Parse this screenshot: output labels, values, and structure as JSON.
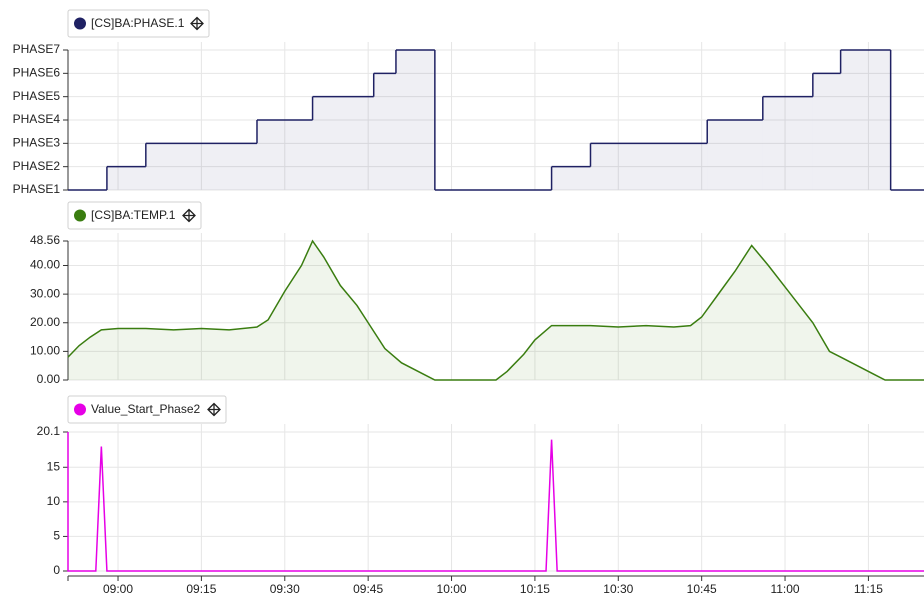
{
  "chart_data": [
    {
      "type": "step",
      "xlim": [
        "08:51",
        "11:25"
      ],
      "ylim": [
        1,
        7
      ],
      "yticks": [
        {
          "value": 1,
          "label": "PHASE1"
        },
        {
          "value": 2,
          "label": "PHASE2"
        },
        {
          "value": 3,
          "label": "PHASE3"
        },
        {
          "value": 4,
          "label": "PHASE4"
        },
        {
          "value": 5,
          "label": "PHASE5"
        },
        {
          "value": 6,
          "label": "PHASE6"
        },
        {
          "value": 7,
          "label": "PHASE7"
        }
      ],
      "grid": true,
      "series": [
        {
          "name": "[CS]BA:PHASE.1",
          "color": "#1f2163",
          "x": [
            "08:51",
            "08:58",
            "09:05",
            "09:25",
            "09:35",
            "09:46",
            "09:50",
            "09:57",
            "10:18",
            "10:25",
            "10:46",
            "10:56",
            "11:05",
            "11:10",
            "11:19"
          ],
          "values": [
            1,
            2,
            3,
            4,
            5,
            6,
            7,
            1,
            2,
            3,
            4,
            5,
            6,
            7,
            1
          ]
        }
      ]
    },
    {
      "type": "area",
      "xlim": [
        "08:51",
        "11:25"
      ],
      "ylim": [
        0,
        48.56
      ],
      "yticks": [
        {
          "value": 0,
          "label": "0.00"
        },
        {
          "value": 10,
          "label": "10.00"
        },
        {
          "value": 20,
          "label": "20.00"
        },
        {
          "value": 30,
          "label": "30.00"
        },
        {
          "value": 40,
          "label": "40.00"
        },
        {
          "value": 48.56,
          "label": "48.56"
        }
      ],
      "grid": true,
      "series": [
        {
          "name": "[CS]BA:TEMP.1",
          "color": "#3a7d10",
          "x": [
            "08:51",
            "08:53",
            "08:55",
            "08:57",
            "09:00",
            "09:05",
            "09:10",
            "09:15",
            "09:20",
            "09:25",
            "09:27",
            "09:30",
            "09:33",
            "09:35",
            "09:37",
            "09:40",
            "09:43",
            "09:45",
            "09:48",
            "09:51",
            "09:55",
            "09:57",
            "10:08",
            "10:10",
            "10:13",
            "10:15",
            "10:18",
            "10:20",
            "10:25",
            "10:30",
            "10:35",
            "10:40",
            "10:43",
            "10:45",
            "10:48",
            "10:51",
            "10:54",
            "10:57",
            "11:00",
            "11:03",
            "11:05",
            "11:08",
            "11:10",
            "11:12",
            "11:14",
            "11:16",
            "11:18",
            "11:25"
          ],
          "values": [
            8,
            12,
            15,
            17.5,
            18,
            18,
            17.5,
            18,
            17.5,
            18.5,
            21,
            31,
            40,
            48.56,
            43,
            33,
            26,
            20,
            11,
            6,
            2,
            0,
            0,
            3,
            9,
            14,
            19,
            19,
            19,
            18.5,
            19,
            18.5,
            19,
            22,
            30,
            38,
            47,
            40,
            32.5,
            25,
            20,
            10,
            8,
            6,
            4,
            2,
            0,
            0
          ]
        }
      ]
    },
    {
      "type": "line",
      "xlim": [
        "08:51",
        "11:25"
      ],
      "ylim": [
        0,
        20.1
      ],
      "yticks": [
        0,
        5,
        10,
        15,
        20.1
      ],
      "xticks": [
        "09:00",
        "09:15",
        "09:30",
        "09:45",
        "10:00",
        "10:15",
        "10:30",
        "10:45",
        "11:00",
        "11:15"
      ],
      "grid": true,
      "series": [
        {
          "name": "Value_Start_Phase2",
          "color": "#e600e6",
          "x": [
            "08:51",
            "08:51",
            "08:56",
            "08:57",
            "08:58",
            "10:17",
            "10:18",
            "10:19",
            "11:25"
          ],
          "values": [
            20.1,
            0,
            0,
            18,
            0,
            0,
            19,
            0,
            0
          ]
        }
      ]
    }
  ]
}
